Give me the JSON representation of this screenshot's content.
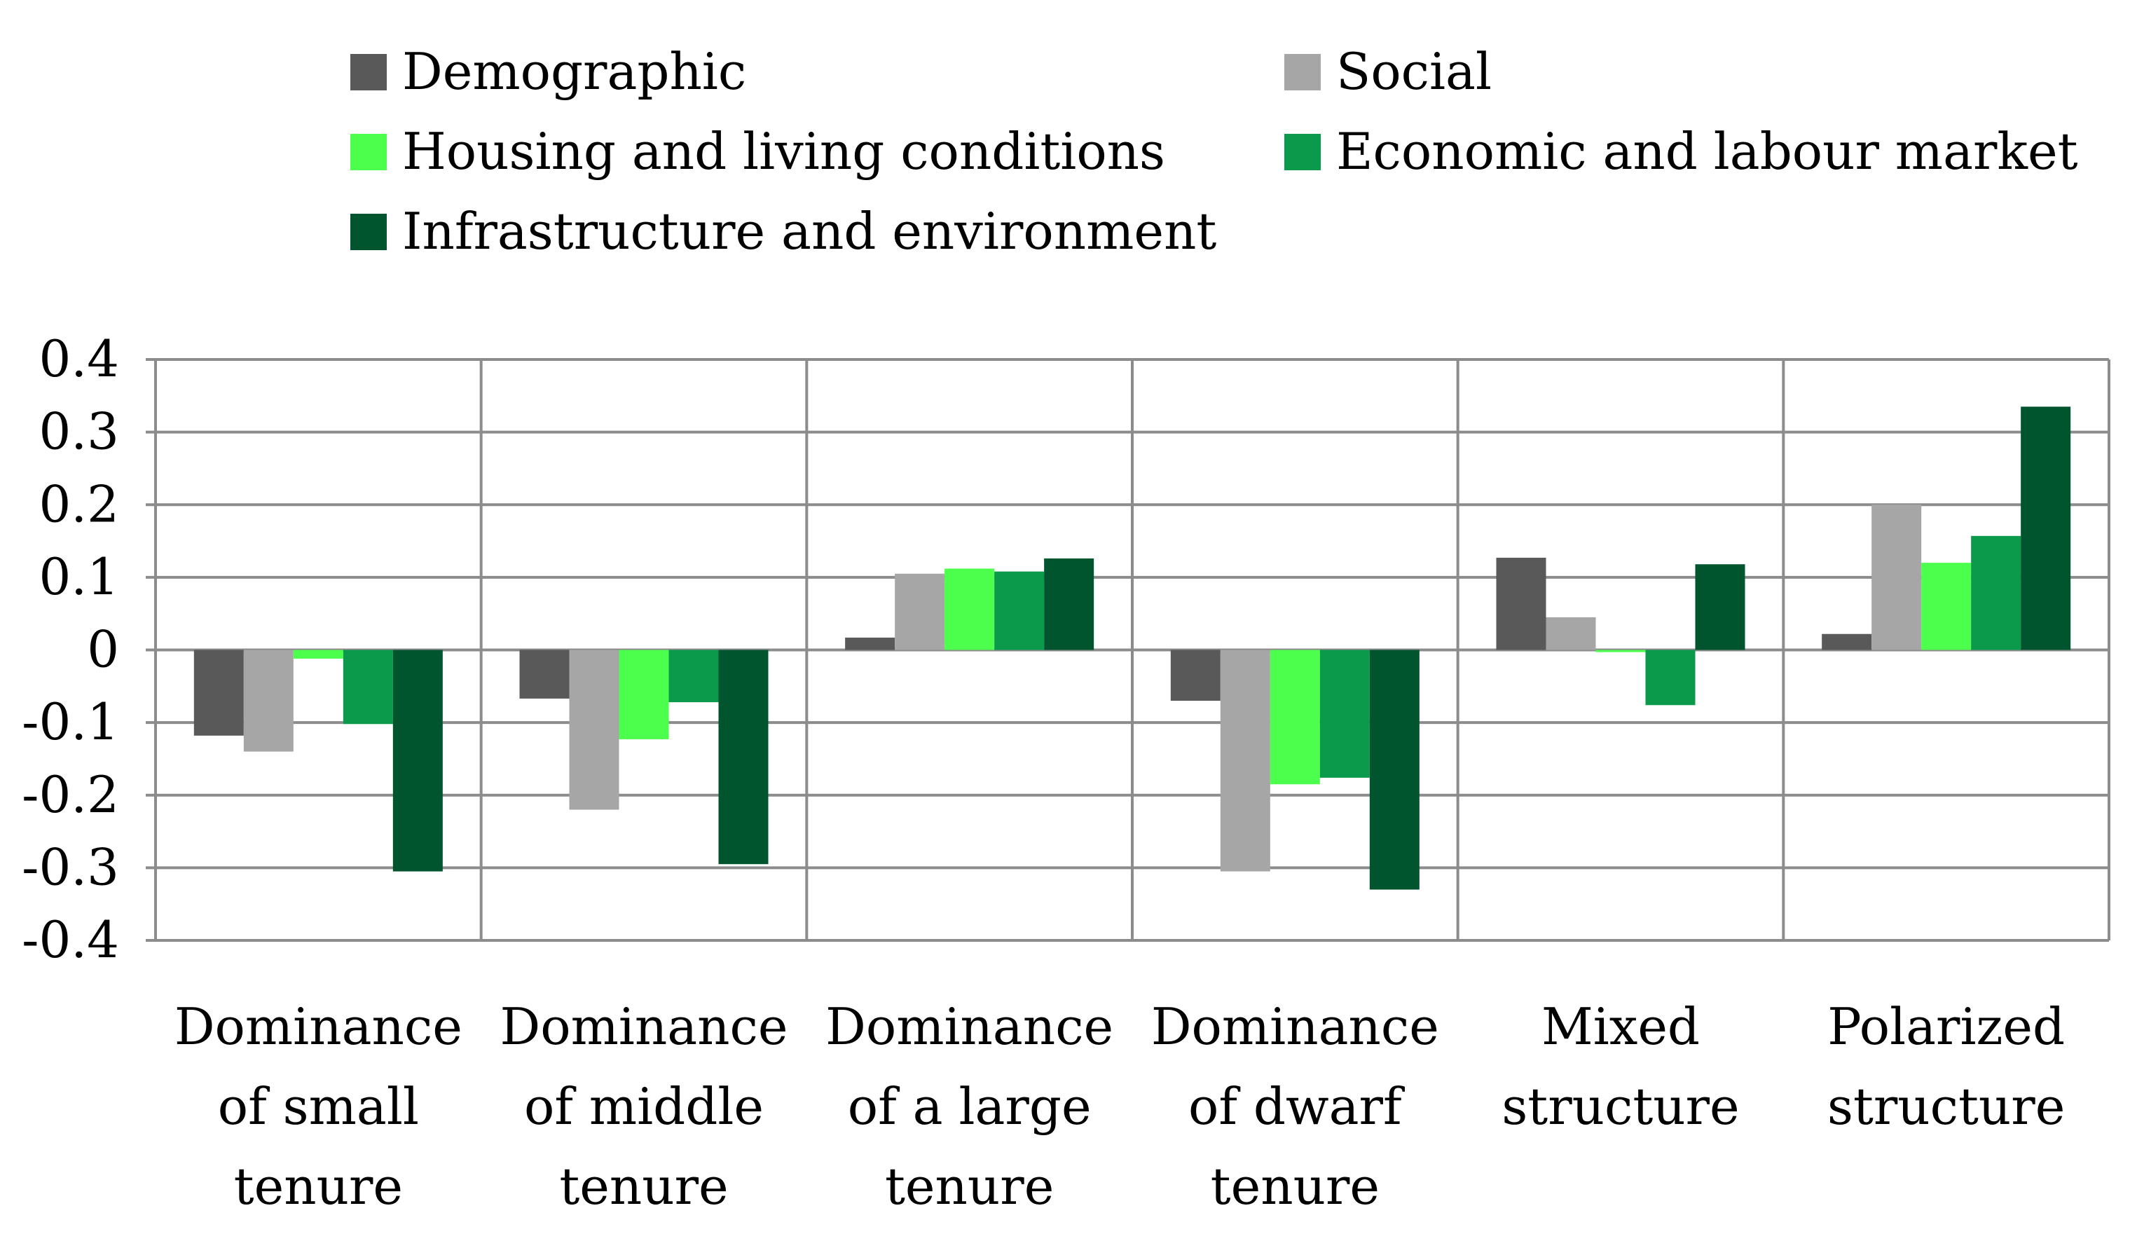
{
  "chart_data": {
    "type": "bar",
    "title": "",
    "xlabel": "",
    "ylabel": "",
    "ylim": [
      -0.4,
      0.4
    ],
    "y_ticks": [
      "0.4",
      "0.3",
      "0.2",
      "0.1",
      "0",
      "-0.1",
      "-0.2",
      "-0.3",
      "-0.4"
    ],
    "y_tick_values": [
      0.4,
      0.3,
      0.2,
      0.1,
      0,
      -0.1,
      -0.2,
      -0.3,
      -0.4
    ],
    "grid": true,
    "legend_position": "top",
    "categories": [
      [
        "Dominance",
        "of small",
        "tenure"
      ],
      [
        "Dominance",
        "of middle",
        "tenure"
      ],
      [
        "Dominance",
        "of a large",
        "tenure"
      ],
      [
        "Dominance",
        "of dwarf",
        "tenure"
      ],
      [
        "Mixed",
        "structure"
      ],
      [
        "Polarized",
        "structure"
      ]
    ],
    "series": [
      {
        "name": "Demographic",
        "color": "#595959",
        "values": [
          -0.118,
          -0.067,
          0.017,
          -0.07,
          0.127,
          0.022
        ]
      },
      {
        "name": "Social",
        "color": "#a6a6a6",
        "values": [
          -0.14,
          -0.22,
          0.105,
          -0.305,
          0.045,
          0.2
        ]
      },
      {
        "name": "Housing and living conditions",
        "color": "#4cff4c",
        "values": [
          -0.012,
          -0.123,
          0.112,
          -0.185,
          -0.003,
          0.12
        ]
      },
      {
        "name": "Economic and labour market",
        "color": "#0b9a4b",
        "values": [
          -0.102,
          -0.072,
          0.108,
          -0.176,
          -0.076,
          0.157
        ]
      },
      {
        "name": "Infrastructure and environment",
        "color": "#00542e",
        "values": [
          -0.305,
          -0.295,
          0.126,
          -0.33,
          0.118,
          0.335
        ]
      }
    ]
  }
}
